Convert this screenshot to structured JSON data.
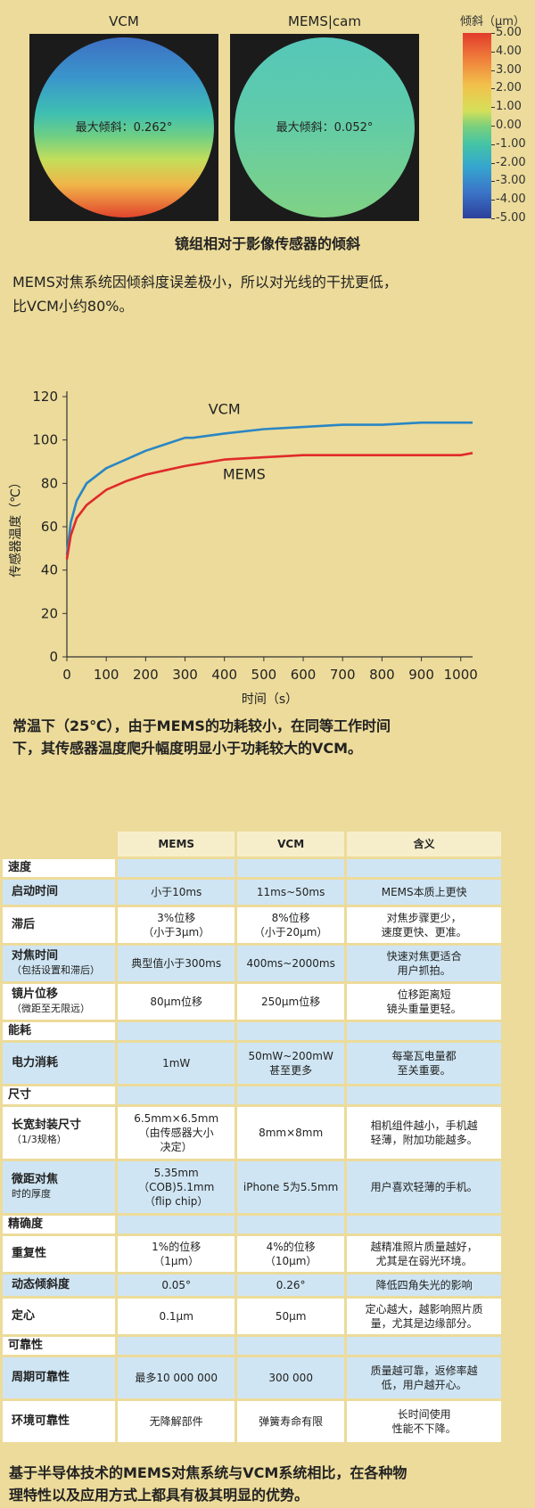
{
  "tilt": {
    "vcm_title": "VCM",
    "mems_title": "MEMS|cam",
    "vcm_label": "最大倾斜：0.262°",
    "mems_label": "最大倾斜：0.052°",
    "colorbar_title": "倾斜（μm）",
    "colorbar_ticks": [
      "5.00",
      "4.00",
      "3.00",
      "2.00",
      "1.00",
      "0.00",
      "-1.00",
      "-2.00",
      "-3.00",
      "-4.00",
      "-5.00"
    ],
    "caption": "镜组相对于影像传感器的倾斜",
    "desc_line1": "MEMS对焦系统因倾斜度误差极小，所以对光线的干扰更低，",
    "desc_line2": "比VCM小约80%。"
  },
  "chart_data": {
    "type": "line",
    "xlabel": "时间（s）",
    "ylabel": "传感器温度（℃）",
    "xlim": [
      0,
      1030
    ],
    "ylim": [
      0,
      120
    ],
    "xticks": [
      0,
      100,
      200,
      300,
      400,
      500,
      600,
      700,
      800,
      900,
      1000
    ],
    "yticks": [
      0,
      20,
      40,
      60,
      80,
      100,
      120
    ],
    "series": [
      {
        "name": "VCM",
        "color": "#2a86c4",
        "x": [
          0,
          10,
          25,
          50,
          100,
          150,
          200,
          250,
          300,
          320,
          400,
          500,
          600,
          700,
          800,
          900,
          1000,
          1030
        ],
        "y": [
          47,
          62,
          72,
          80,
          87,
          91,
          95,
          98,
          101,
          101,
          103,
          105,
          106,
          107,
          107,
          108,
          108,
          108
        ]
      },
      {
        "name": "MEMS",
        "color": "#e02a2a",
        "x": [
          0,
          10,
          25,
          50,
          100,
          150,
          200,
          250,
          300,
          400,
          500,
          600,
          700,
          800,
          900,
          1000,
          1030
        ],
        "y": [
          45,
          56,
          64,
          70,
          77,
          81,
          84,
          86,
          88,
          91,
          92,
          93,
          93,
          93,
          93,
          93,
          94
        ]
      }
    ]
  },
  "temp_text": {
    "line1": "常温下（25℃），由于MEMS的功耗较小，在同等工作时间",
    "line2": "下，其传感器温度爬升幅度明显小于功耗较大的VCM。"
  },
  "table": {
    "headers": [
      "MEMS",
      "VCM",
      "含义"
    ],
    "sections": {
      "speed": "速度",
      "power": "能耗",
      "size": "尺寸",
      "precision": "精确度",
      "reliability": "可靠性"
    },
    "rows": {
      "startup": [
        "启动时间",
        "小于10ms",
        "11ms~50ms",
        "MEMS本质上更快"
      ],
      "lag": [
        "滞后",
        "3%位移\n（小于3μm）",
        "8%位移\n（小于20μm）",
        "对焦步骤更少，\n速度更快、更准。"
      ],
      "focus": [
        "对焦时间\n（包括设置和滞后）",
        "典型值小于300ms",
        "400ms~2000ms",
        "快速对焦更适合\n用户抓拍。"
      ],
      "lens": [
        "镜片位移\n（微距至无限远）",
        "80μm位移",
        "250μm位移",
        "位移距离短\n镜头重量更轻。"
      ],
      "consumption": [
        "电力消耗",
        "1mW",
        "50mW~200mW\n甚至更多",
        "每毫瓦电量都\n至关重要。"
      ],
      "package": [
        "长宽封装尺寸\n（1/3规格）",
        "6.5mm×6.5mm\n（由传感器大小\n决定）",
        "8mm×8mm",
        "相机组件越小，手机越\n轻薄，附加功能越多。"
      ],
      "thickness": [
        "微距对焦\n时的厚度",
        "5.35mm\n（COB)5.1mm\n（flip chip）",
        "iPhone 5为5.5mm",
        "用户喜欢轻薄的手机。"
      ],
      "repeat": [
        "重复性",
        "1%的位移\n（1μm）",
        "4%的位移\n（10μm）",
        "越精准照片质量越好，\n尤其是在弱光环境。"
      ],
      "dyntilt": [
        "动态倾斜度",
        "0.05°",
        "0.26°",
        "降低四角失光的影响"
      ],
      "center": [
        "定心",
        "0.1μm",
        "50μm",
        "定心越大，越影响照片质\n量，尤其是边缘部分。"
      ],
      "cycle": [
        "周期可靠性",
        "最多10 000 000",
        "300 000",
        "质量越可靠，返修率越\n低，用户越开心。"
      ],
      "env": [
        "环境可靠性",
        "无降解部件",
        "弹簧寿命有限",
        "长时间使用\n性能不下降。"
      ]
    }
  },
  "footer": {
    "line1": "基于半导体技术的MEMS对焦系统与VCM系统相比，在各种物",
    "line2": "理特性以及应用方式上都具有极其明显的优势。"
  }
}
